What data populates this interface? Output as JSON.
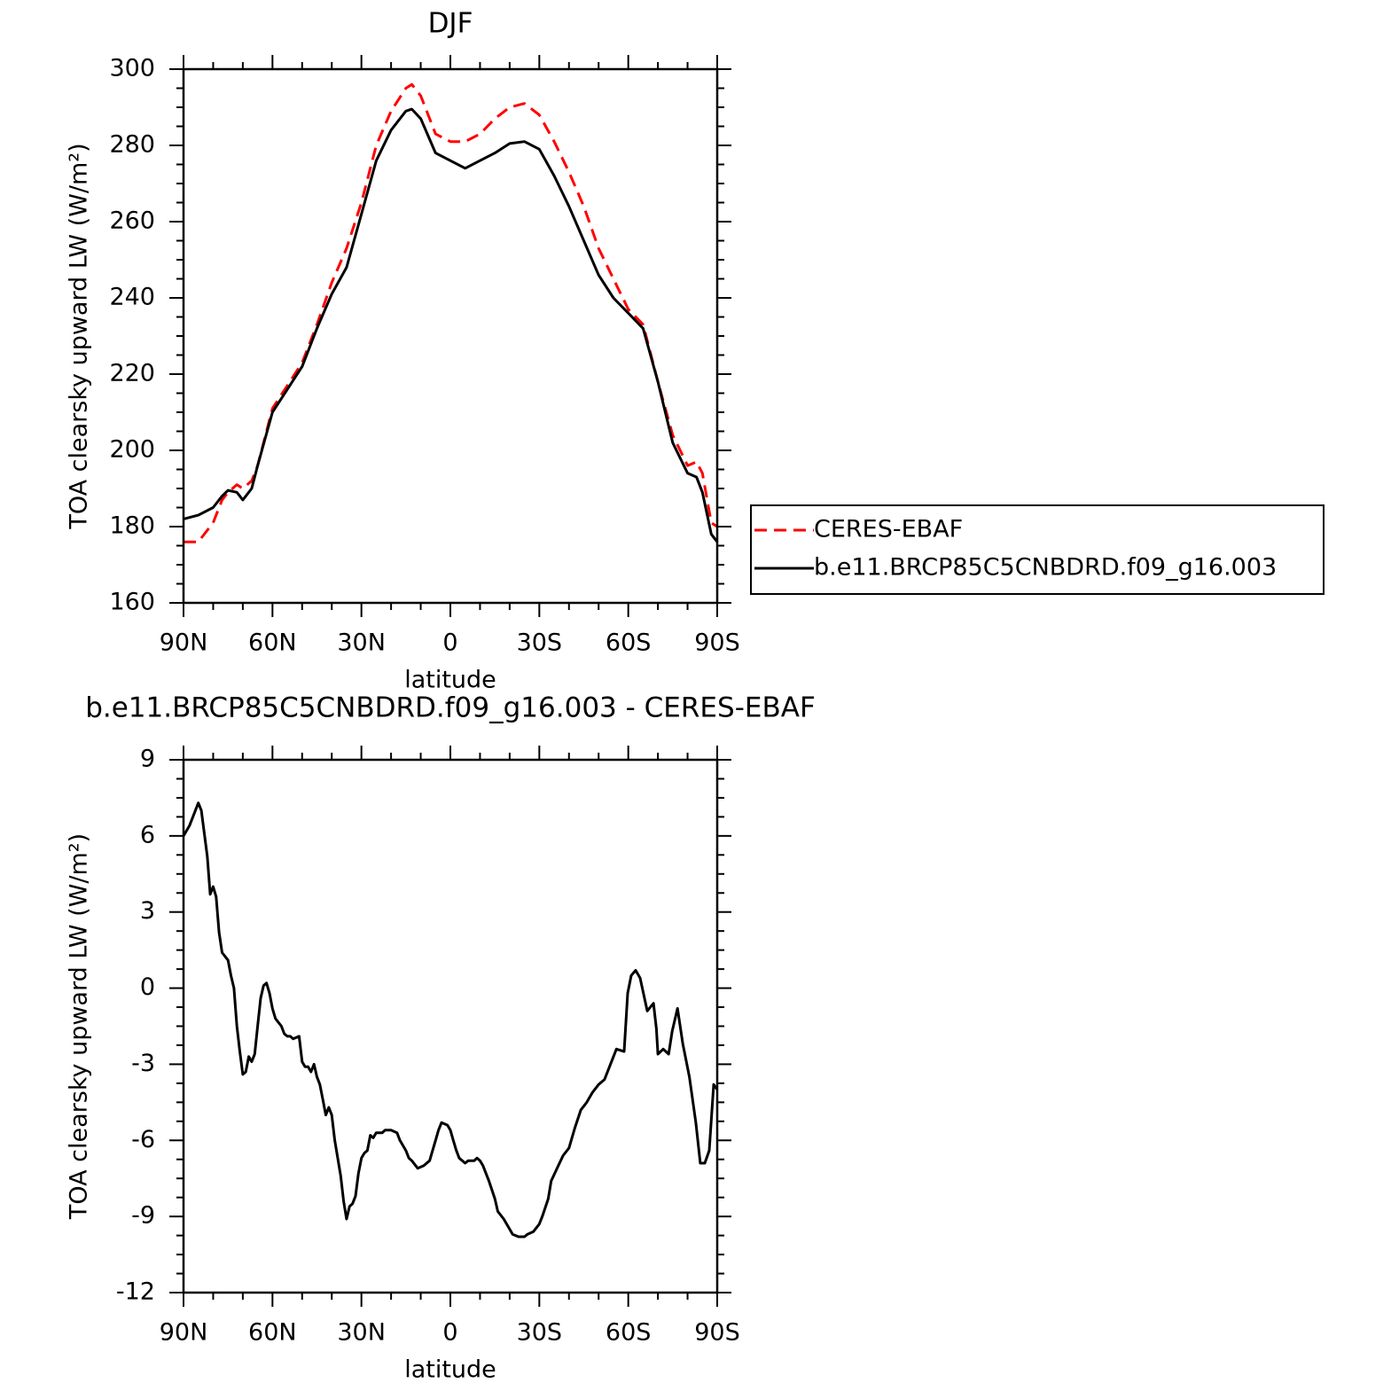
{
  "chart_data": [
    {
      "type": "line",
      "title": "DJF",
      "xlabel": "latitude",
      "ylabel": "TOA clearsky upward LW (W/m²)",
      "xlim": [
        90,
        -90
      ],
      "xticks": [
        {
          "value": 90,
          "label": "90N"
        },
        {
          "value": 60,
          "label": "60N"
        },
        {
          "value": 30,
          "label": "30N"
        },
        0,
        {
          "value": -30,
          "label": "30S"
        },
        {
          "value": -60,
          "label": "60S"
        },
        {
          "value": -90,
          "label": "90S"
        }
      ],
      "ylim": [
        160,
        300
      ],
      "yticks": [
        160,
        180,
        200,
        220,
        240,
        260,
        280,
        300
      ],
      "legend": "right",
      "x": [
        90,
        85,
        80,
        77,
        75,
        72,
        70,
        67,
        65,
        60,
        55,
        50,
        45,
        40,
        35,
        30,
        25,
        20,
        15,
        13,
        10,
        5,
        0,
        -5,
        -10,
        -15,
        -20,
        -25,
        -30,
        -35,
        -40,
        -45,
        -50,
        -55,
        -60,
        -65,
        -70,
        -75,
        -80,
        -83,
        -85,
        -88,
        -90
      ],
      "series": [
        {
          "name": "CERES-EBAF",
          "color": "#ff0000",
          "dash": true,
          "values": [
            176,
            176,
            181,
            187,
            189,
            191,
            190,
            192,
            196,
            211,
            217,
            223,
            233,
            244,
            253,
            265,
            280,
            289,
            295,
            296,
            293,
            283,
            281,
            281,
            283,
            287,
            290,
            291,
            288,
            281,
            273,
            264,
            253,
            245,
            237,
            233,
            218,
            204,
            196,
            197,
            194,
            181,
            180
          ]
        },
        {
          "name": "b.e11.BRCP85C5CNBDRD.f09_g16.003",
          "color": "#000000",
          "dash": false,
          "values": [
            182,
            183,
            185,
            188,
            189.5,
            189,
            187,
            190,
            196,
            210,
            216,
            222,
            232,
            241,
            248,
            262,
            276,
            284,
            289,
            289.5,
            287,
            278,
            276,
            274,
            276,
            278,
            280.5,
            281,
            279,
            272,
            264,
            255,
            246,
            240,
            236,
            232,
            218,
            202,
            194,
            193,
            189,
            178,
            176
          ]
        }
      ]
    },
    {
      "type": "line",
      "title": "b.e11.BRCP85C5CNBDRD.f09_g16.003 - CERES-EBAF",
      "xlabel": "latitude",
      "ylabel": "TOA clearsky upward LW (W/m²)",
      "xlim": [
        90,
        -90
      ],
      "xticks": [
        {
          "value": 90,
          "label": "90N"
        },
        {
          "value": 60,
          "label": "60N"
        },
        {
          "value": 30,
          "label": "30N"
        },
        0,
        {
          "value": -30,
          "label": "30S"
        },
        {
          "value": -60,
          "label": "60S"
        },
        {
          "value": -90,
          "label": "90S"
        }
      ],
      "ylim": [
        -12,
        9
      ],
      "yticks": [
        -12,
        -9,
        -6,
        -3,
        0,
        3,
        6,
        9
      ],
      "color": "#000000",
      "x": [
        90,
        88,
        86,
        85,
        84,
        82,
        81,
        80,
        79,
        78,
        77,
        75,
        74,
        73,
        72,
        71,
        70,
        69,
        68,
        67,
        66,
        65,
        64,
        63,
        62,
        61,
        60,
        59,
        57,
        56,
        55,
        54,
        53,
        51,
        50,
        49,
        48,
        47,
        46,
        45,
        44,
        43,
        42,
        41,
        40,
        39,
        37,
        36,
        35,
        34,
        33,
        32,
        31,
        30,
        29,
        28,
        27,
        26,
        25,
        23,
        22,
        20,
        18,
        17,
        15,
        14,
        13,
        11,
        9,
        7,
        5,
        4,
        3,
        1,
        0,
        -1,
        -2,
        -3,
        -5,
        -6,
        -8,
        -9,
        -10,
        -11,
        -13,
        -15,
        -16,
        -18,
        -20,
        -21,
        -23,
        -25,
        -26,
        -28,
        -30,
        -31,
        -33,
        -34,
        -36,
        -38,
        -40,
        -42,
        -44,
        -46,
        -48,
        -50,
        -52,
        -54,
        -56,
        -58.6,
        -59.8,
        -61,
        -62.5,
        -64,
        -66.4,
        -68.5,
        -69.5,
        -70,
        -71.8,
        -73.6,
        -74.8,
        -76.6,
        -78.4,
        -80.6,
        -82.8,
        -84.3,
        -85.8,
        -87.3,
        -88.8,
        -90
      ],
      "values": [
        6.0,
        6.4,
        7.0,
        7.3,
        7.0,
        5.2,
        3.7,
        4.0,
        3.6,
        2.2,
        1.4,
        1.1,
        0.5,
        0,
        -1.5,
        -2.5,
        -3.4,
        -3.3,
        -2.7,
        -2.9,
        -2.6,
        -1.5,
        -0.4,
        0.1,
        0.2,
        -0.2,
        -0.8,
        -1.2,
        -1.5,
        -1.8,
        -1.9,
        -1.9,
        -2.0,
        -1.9,
        -2.9,
        -3.1,
        -3.1,
        -3.3,
        -3.0,
        -3.5,
        -3.8,
        -4.4,
        -5.0,
        -4.7,
        -5.0,
        -6.0,
        -7.4,
        -8.4,
        -9.1,
        -8.6,
        -8.5,
        -8.2,
        -7.3,
        -6.7,
        -6.5,
        -6.4,
        -5.8,
        -5.9,
        -5.7,
        -5.7,
        -5.6,
        -5.6,
        -5.7,
        -6.0,
        -6.4,
        -6.7,
        -6.8,
        -7.1,
        -7.0,
        -6.8,
        -6.0,
        -5.6,
        -5.3,
        -5.4,
        -5.6,
        -6.0,
        -6.4,
        -6.7,
        -6.9,
        -6.8,
        -6.8,
        -6.7,
        -6.8,
        -7.0,
        -7.6,
        -8.3,
        -8.8,
        -9.1,
        -9.5,
        -9.7,
        -9.8,
        -9.8,
        -9.7,
        -9.6,
        -9.3,
        -9.0,
        -8.3,
        -7.6,
        -7.1,
        -6.6,
        -6.3,
        -5.5,
        -4.8,
        -4.5,
        -4.1,
        -3.8,
        -3.6,
        -3.0,
        -2.4,
        -2.5,
        -0.2,
        0.5,
        0.7,
        0.4,
        -0.9,
        -0.6,
        -1.6,
        -2.6,
        -2.4,
        -2.6,
        -1.7,
        -0.8,
        -2.2,
        -3.5,
        -5.3,
        -6.9,
        -6.9,
        -6.4,
        -3.8,
        -4.0
      ]
    }
  ]
}
